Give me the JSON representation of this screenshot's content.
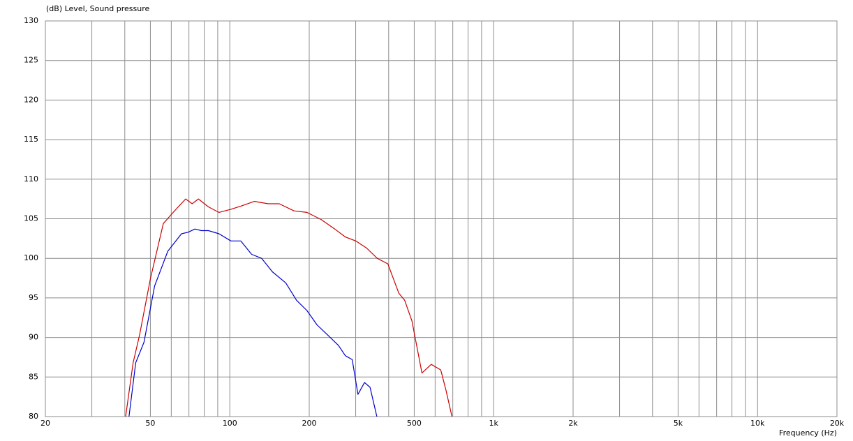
{
  "chart_data": {
    "type": "line",
    "ylabel": "(dB)  Level, Sound pressure",
    "xlabel": "Frequency  (Hz)",
    "log_x": true,
    "grid": true,
    "xlim": [
      20,
      20000
    ],
    "ylim": [
      80,
      130
    ],
    "xticks": [
      20,
      50,
      100,
      200,
      500,
      {
        "value": 1000,
        "label": "1k"
      },
      {
        "value": 2000,
        "label": "2k"
      },
      {
        "value": 5000,
        "label": "5k"
      },
      {
        "value": 10000,
        "label": "10k"
      },
      {
        "value": 20000,
        "label": "20k"
      }
    ],
    "xminor": [
      30,
      40,
      60,
      70,
      80,
      90,
      300,
      400,
      600,
      700,
      800,
      900,
      3000,
      4000,
      6000,
      7000,
      8000,
      9000
    ],
    "yticks": [
      80,
      85,
      90,
      95,
      100,
      105,
      110,
      115,
      120,
      125,
      130
    ],
    "series": [
      {
        "color": "#cc0000",
        "x": [
          40.3,
          43,
          45.5,
          50,
          56,
          61,
          68,
          72,
          76,
          83,
          91,
          101,
          110,
          124,
          140,
          154,
          175,
          196,
          222,
          250,
          274,
          300,
          330,
          362,
          397,
          437,
          460,
          490,
          535,
          580,
          630,
          660,
          695
        ],
        "values": [
          80,
          86.8,
          90.3,
          97.4,
          104.4,
          105.8,
          107.5,
          106.9,
          107.5,
          106.5,
          105.8,
          106.2,
          106.6,
          107.2,
          106.9,
          106.9,
          106,
          105.8,
          104.9,
          103.7,
          102.7,
          102.2,
          101.3,
          100,
          99.3,
          95.6,
          94.7,
          92.1,
          85.5,
          86.6,
          85.9,
          83.3,
          80
        ]
      },
      {
        "color": "#0000cc",
        "x": [
          41.5,
          44,
          47.3,
          51.9,
          58.2,
          65.6,
          69.5,
          73.8,
          78,
          83,
          91,
          101,
          110,
          121,
          132,
          145,
          163,
          179,
          196,
          214,
          235,
          258,
          274,
          291,
          306,
          324,
          340,
          361
        ],
        "values": [
          80,
          86.8,
          89.4,
          96.5,
          100.9,
          103.1,
          103.3,
          103.7,
          103.5,
          103.5,
          103.1,
          102.2,
          102.2,
          100.5,
          100,
          98.3,
          96.9,
          94.7,
          93.4,
          91.6,
          90.3,
          89,
          87.7,
          87.2,
          82.8,
          84.3,
          83.7,
          80
        ]
      }
    ]
  }
}
